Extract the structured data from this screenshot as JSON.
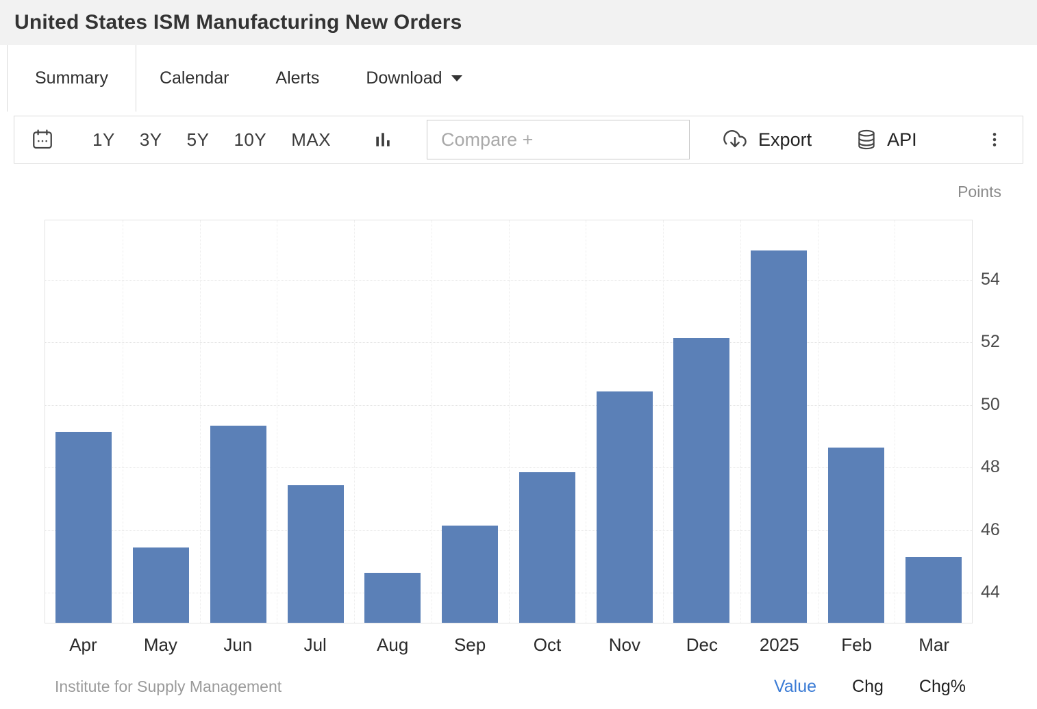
{
  "header": {
    "title": "United States ISM Manufacturing New Orders"
  },
  "tabs": [
    {
      "label": "Summary",
      "active": true
    },
    {
      "label": "Calendar",
      "active": false
    },
    {
      "label": "Alerts",
      "active": false
    },
    {
      "label": "Download",
      "active": false,
      "has_caret": true
    }
  ],
  "toolbar": {
    "ranges": [
      "1Y",
      "3Y",
      "5Y",
      "10Y",
      "MAX"
    ],
    "compare_placeholder": "Compare +",
    "export_label": "Export",
    "api_label": "API",
    "icons": [
      "calendar-icon",
      "bar-chart-icon",
      "cloud-download-icon",
      "database-icon",
      "kebab-menu-icon"
    ]
  },
  "chart": {
    "points_label": "Points"
  },
  "chart_data": {
    "type": "bar",
    "title": "United States ISM Manufacturing New Orders",
    "categories": [
      "Apr",
      "May",
      "Jun",
      "Jul",
      "Aug",
      "Sep",
      "Oct",
      "Nov",
      "Dec",
      "2025",
      "Feb",
      "Mar"
    ],
    "values": [
      49.1,
      45.4,
      49.3,
      47.4,
      44.6,
      46.1,
      47.8,
      50.4,
      52.1,
      54.9,
      48.6,
      45.1
    ],
    "xlabel": "",
    "ylabel": "Points",
    "yticks": [
      44,
      46,
      48,
      50,
      52,
      54
    ],
    "ylim": [
      43.0,
      55.9
    ],
    "grid": true,
    "legend_position": "none"
  },
  "colors": {
    "bar": "#5b80b7",
    "value_link": "#3a7bd5",
    "header_bg": "#f2f2f2"
  },
  "footer": {
    "source": "Institute for Supply Management",
    "links": [
      {
        "label": "Value",
        "active": true
      },
      {
        "label": "Chg",
        "active": false
      },
      {
        "label": "Chg%",
        "active": false
      }
    ]
  }
}
